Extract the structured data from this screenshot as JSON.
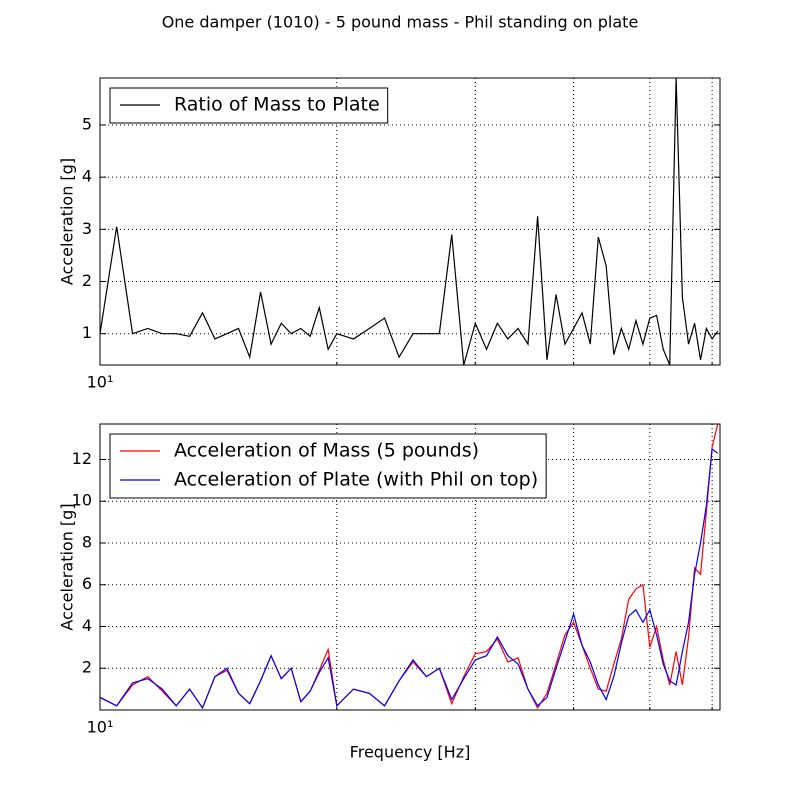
{
  "title": "One damper (1010) - 5 pound mass - Phil standing on plate",
  "chart_data": [
    {
      "type": "line",
      "ylabel": "Acceleration [g]",
      "log_x": true,
      "grid": true,
      "legend": "upper left",
      "xlim": [
        10,
        61.4
      ],
      "xticks": [
        {
          "value": 10,
          "label": "10¹"
        }
      ],
      "xminor": [
        20,
        30,
        40,
        50,
        60
      ],
      "ylim": [
        0.4,
        5.9
      ],
      "yticks": [
        1,
        2,
        3,
        4,
        5
      ],
      "x": [
        10,
        10.5,
        11,
        11.5,
        12,
        12.5,
        13,
        13.5,
        14,
        14.5,
        15,
        15.5,
        16,
        16.5,
        17,
        17.5,
        18,
        18.5,
        19,
        19.5,
        20,
        21,
        22,
        23,
        24,
        25,
        26,
        27,
        28,
        29,
        30,
        31,
        32,
        33,
        34,
        35,
        36,
        37,
        38,
        39,
        40,
        41,
        42,
        43,
        44,
        45,
        46,
        47,
        48,
        49,
        50,
        51,
        52,
        53,
        54,
        55,
        56,
        57,
        58,
        59,
        60,
        61
      ],
      "series": [
        {
          "name": "Ratio of Mass to Plate",
          "color": "#000000",
          "values": [
            1.0,
            3.05,
            1.0,
            1.1,
            1.0,
            1.0,
            0.95,
            1.4,
            0.9,
            1.0,
            1.1,
            0.55,
            1.8,
            0.8,
            1.2,
            1.0,
            1.1,
            0.95,
            1.5,
            0.7,
            1.0,
            0.9,
            1.1,
            1.3,
            0.55,
            1.0,
            1.0,
            1.0,
            2.9,
            0.4,
            1.2,
            0.7,
            1.2,
            0.9,
            1.1,
            0.8,
            3.25,
            0.5,
            1.75,
            0.8,
            1.1,
            1.4,
            0.8,
            2.85,
            2.3,
            0.6,
            1.1,
            0.7,
            1.25,
            0.8,
            1.3,
            1.35,
            0.7,
            0.4,
            5.9,
            1.7,
            0.8,
            1.2,
            0.5,
            1.1,
            0.9,
            1.05
          ]
        }
      ]
    },
    {
      "type": "line",
      "ylabel": "Acceleration [g]",
      "xlabel": "Frequency [Hz]",
      "log_x": true,
      "grid": true,
      "legend": "upper left",
      "xlim": [
        10,
        61.4
      ],
      "xticks": [
        {
          "value": 10,
          "label": "10¹"
        }
      ],
      "xminor": [
        20,
        30,
        40,
        50,
        60
      ],
      "ylim": [
        0,
        13.7
      ],
      "yticks": [
        2,
        4,
        6,
        8,
        10,
        12
      ],
      "x": [
        10,
        10.5,
        11,
        11.5,
        12,
        12.5,
        13,
        13.5,
        14,
        14.5,
        15,
        15.5,
        16,
        16.5,
        17,
        17.5,
        18,
        18.5,
        19,
        19.5,
        20,
        21,
        22,
        23,
        24,
        25,
        26,
        27,
        28,
        29,
        30,
        31,
        32,
        33,
        34,
        35,
        36,
        37,
        38,
        39,
        40,
        41,
        42,
        43,
        44,
        45,
        46,
        47,
        48,
        49,
        50,
        51,
        52,
        53,
        54,
        55,
        56,
        57,
        58,
        59,
        60,
        61
      ],
      "series": [
        {
          "name": "Acceleration of Mass (5 pounds)",
          "color": "#ff0000",
          "values": [
            0.6,
            0.2,
            1.2,
            1.6,
            0.9,
            0.2,
            1.0,
            0.1,
            1.6,
            1.9,
            0.8,
            0.3,
            1.4,
            2.6,
            1.5,
            2.0,
            0.4,
            0.9,
            1.9,
            2.9,
            0.2,
            1.0,
            0.8,
            0.2,
            1.4,
            2.3,
            1.6,
            2.0,
            0.3,
            1.6,
            2.7,
            2.8,
            3.4,
            2.3,
            2.5,
            1.0,
            0.1,
            0.8,
            2.2,
            3.6,
            4.2,
            3.1,
            2.0,
            1.0,
            0.9,
            2.2,
            3.4,
            5.3,
            5.8,
            6.0,
            3.0,
            4.0,
            2.4,
            1.2,
            2.8,
            1.2,
            3.5,
            6.8,
            6.5,
            9.5,
            12.6,
            13.7
          ]
        },
        {
          "name": "Acceleration of Plate (with Phil on top)",
          "color": "#0000ff",
          "values": [
            0.6,
            0.2,
            1.3,
            1.5,
            1.0,
            0.2,
            1.0,
            0.1,
            1.6,
            2.0,
            0.8,
            0.3,
            1.4,
            2.6,
            1.5,
            2.0,
            0.4,
            0.9,
            1.8,
            2.5,
            0.2,
            1.0,
            0.8,
            0.2,
            1.4,
            2.4,
            1.6,
            2.0,
            0.5,
            1.5,
            2.4,
            2.6,
            3.5,
            2.6,
            2.2,
            1.0,
            0.2,
            0.6,
            2.0,
            3.3,
            4.6,
            3.1,
            2.3,
            1.2,
            0.5,
            1.6,
            3.2,
            4.5,
            4.8,
            4.2,
            4.8,
            3.6,
            2.2,
            1.4,
            1.2,
            2.8,
            4.2,
            6.5,
            8.0,
            9.8,
            12.5,
            12.3
          ]
        }
      ]
    }
  ]
}
